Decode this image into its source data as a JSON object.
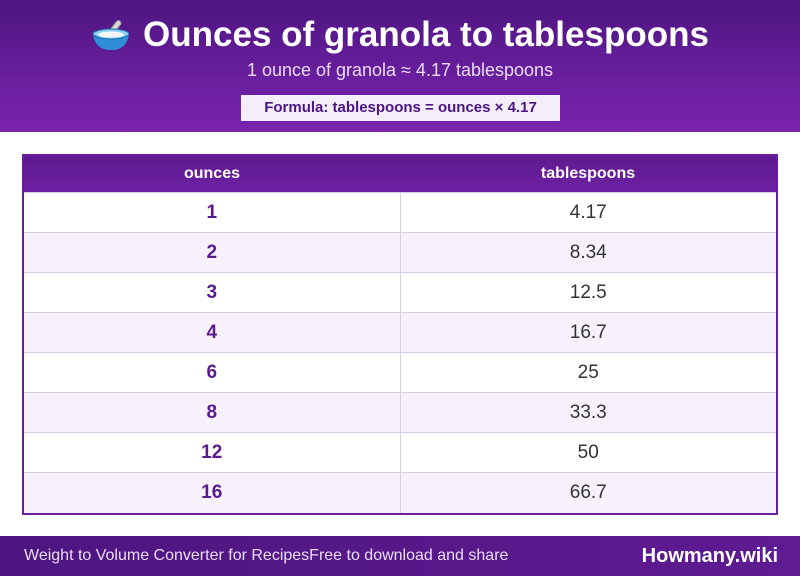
{
  "header": {
    "icon": "bowl-with-spoon-icon",
    "title": "Ounces of granola to tablespoons",
    "subtitle": "1 ounce of granola ≈ 4.17 tablespoons",
    "formula": "Formula: tablespoons = ounces × 4.17"
  },
  "table": {
    "columns": [
      "ounces",
      "tablespoons"
    ],
    "rows": [
      {
        "ounces": "1",
        "tablespoons": "4.17"
      },
      {
        "ounces": "2",
        "tablespoons": "8.34"
      },
      {
        "ounces": "3",
        "tablespoons": "12.5"
      },
      {
        "ounces": "4",
        "tablespoons": "16.7"
      },
      {
        "ounces": "6",
        "tablespoons": "25"
      },
      {
        "ounces": "8",
        "tablespoons": "33.3"
      },
      {
        "ounces": "12",
        "tablespoons": "50"
      },
      {
        "ounces": "16",
        "tablespoons": "66.7"
      }
    ]
  },
  "footer": {
    "app_name": "Weight to Volume Converter for Recipes",
    "tagline": "Free to download and share",
    "brand": "Howmany.wiki"
  },
  "colors": {
    "accent": "#6a1f9e",
    "accent_dark": "#4d1580",
    "row_alt": "#f6f1fb"
  }
}
